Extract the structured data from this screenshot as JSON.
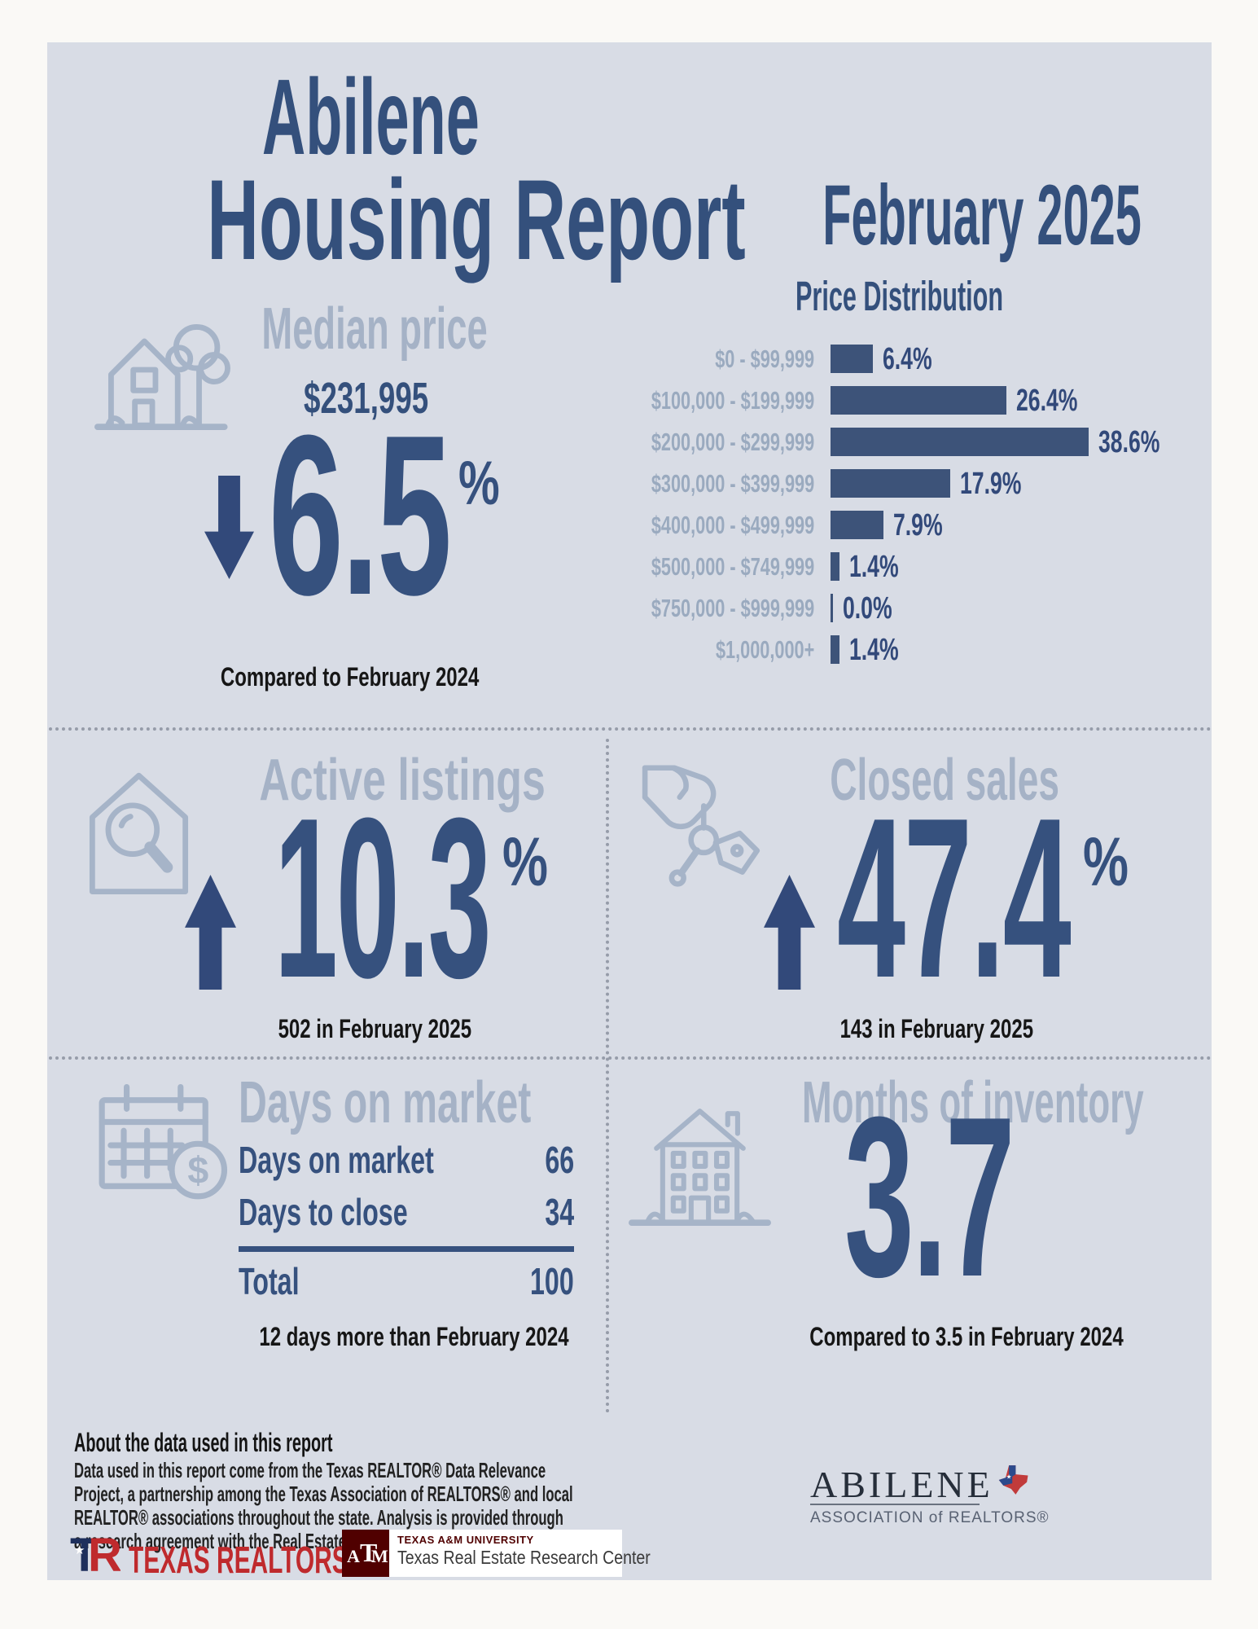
{
  "colors": {
    "card_bg": "#d8dce5",
    "navy": "#34507c",
    "big_number": "#36517e",
    "bar": "#3d5379",
    "section_heading": "#a5b2c6",
    "chart_label": "#9aaabf",
    "icon_stroke": "#a6b4c8",
    "note_text": "#161616",
    "realtor_red": "#bf2a2d",
    "aggie_maroon": "#500000"
  },
  "header": {
    "city": "Abilene",
    "title": "Housing Report",
    "month": "February 2025"
  },
  "median_price": {
    "heading": "Median price",
    "value": "$231,995",
    "change": "6.5",
    "unit": "%",
    "direction": "down",
    "note": "Compared to February 2024"
  },
  "chart_data": {
    "type": "bar",
    "orientation": "horizontal",
    "title": "Price Distribution",
    "categories": [
      "$0 - $99,999",
      "$100,000 - $199,999",
      "$200,000 - $299,999",
      "$300,000 - $399,999",
      "$400,000 - $499,999",
      "$500,000 - $749,999",
      "$750,000 - $999,999",
      "$1,000,000+"
    ],
    "values": [
      6.4,
      26.4,
      38.6,
      17.9,
      7.9,
      1.4,
      0.0,
      1.4
    ],
    "value_labels": [
      "6.4%",
      "26.4%",
      "38.6%",
      "17.9%",
      "7.9%",
      "1.4%",
      "0.0%",
      "1.4%"
    ],
    "xlim": [
      0,
      40
    ],
    "grid": false,
    "legend": "none",
    "bar_color": "#3d5379"
  },
  "active_listings": {
    "heading": "Active listings",
    "change": "10.3",
    "unit": "%",
    "direction": "up",
    "note": "502 in February 2025"
  },
  "closed_sales": {
    "heading": "Closed sales",
    "change": "47.4",
    "unit": "%",
    "direction": "up",
    "note": "143 in February 2025"
  },
  "days_on_market": {
    "heading": "Days on market",
    "rows": [
      {
        "label": "Days on market",
        "value": "66"
      },
      {
        "label": "Days to close",
        "value": "34"
      }
    ],
    "total_label": "Total",
    "total_value": "100",
    "note": "12 days more than February 2024"
  },
  "months_of_inventory": {
    "heading": "Months of inventory",
    "value": "3.7",
    "note": "Compared to 3.5 in February 2024"
  },
  "about": {
    "heading": "About the data used in this report",
    "body": "Data used in this report come from the Texas REALTOR® Data Relevance Project, a partnership among the Texas Association of REALTORS® and local REALTOR® associations throughout the state. Analysis is provided through a research agreement with the Real Estate Center at Texas A&M University."
  },
  "footer": {
    "texas_realtors": {
      "label": "TEXAS REALTORS",
      "reg": "®"
    },
    "tamu": {
      "monogram_a": "A",
      "monogram_t": "T",
      "monogram_m": "M",
      "university": "TEXAS A&M UNIVERSITY",
      "center": "Texas Real Estate Research Center"
    },
    "abilene_association": {
      "name": "ABILENE",
      "subtitle": "ASSOCIATION of REALTORS®"
    }
  }
}
